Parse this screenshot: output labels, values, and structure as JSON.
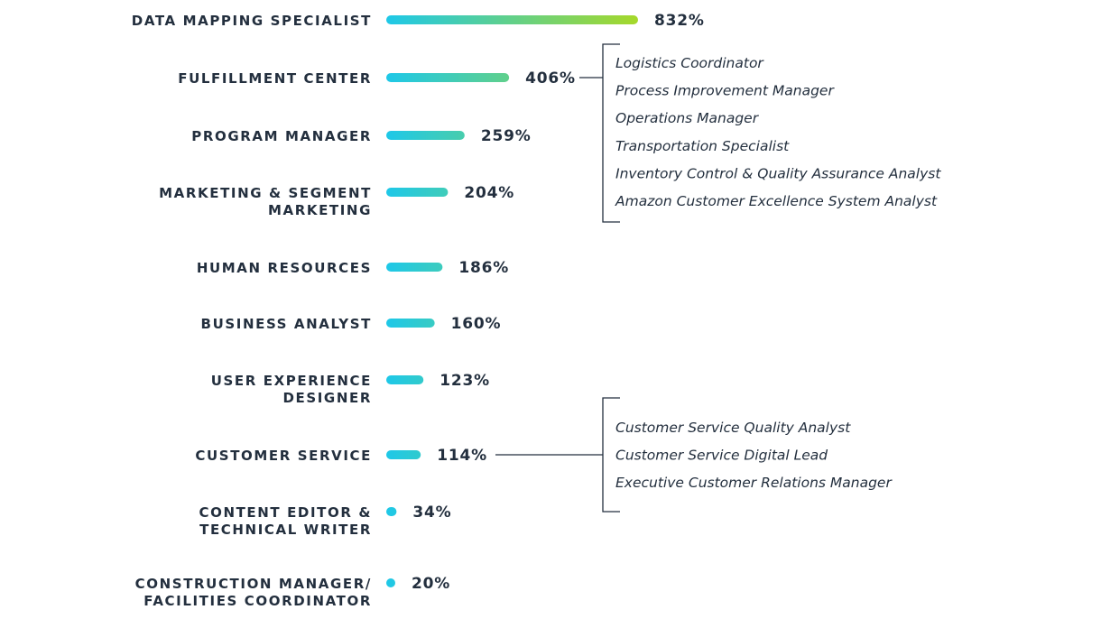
{
  "chart_data": {
    "type": "bar",
    "orientation": "horizontal",
    "unit": "%",
    "categories": [
      [
        "DATA MAPPING SPECIALIST"
      ],
      [
        "FULFILLMENT CENTER"
      ],
      [
        "PROGRAM MANAGER"
      ],
      [
        "MARKETING & SEGMENT",
        "MARKETING"
      ],
      [
        "HUMAN RESOURCES"
      ],
      [
        "BUSINESS ANALYST"
      ],
      [
        "USER EXPERIENCE",
        "DESIGNER"
      ],
      [
        "CUSTOMER SERVICE"
      ],
      [
        "CONTENT EDITOR &",
        "TECHNICAL WRITER"
      ],
      [
        "CONSTRUCTION MANAGER/",
        "FACILITIES COORDINATOR"
      ]
    ],
    "values": [
      832,
      406,
      259,
      204,
      186,
      160,
      123,
      114,
      34,
      20
    ],
    "value_labels": [
      "832%",
      "406%",
      "259%",
      "204%",
      "186%",
      "160%",
      "123%",
      "114%",
      "34%",
      "20%"
    ],
    "colors": {
      "start": "#1ec8e8",
      "end": "#a6d82a",
      "text": "#232f3e",
      "line": "#232f3e"
    },
    "annotations": [
      {
        "target_index": 1,
        "items": [
          "Logistics Coordinator",
          "Process Improvement Manager",
          "Operations Manager",
          "Transportation Specialist",
          "Inventory Control & Quality Assurance Analyst",
          "Amazon Customer Excellence System Analyst"
        ]
      },
      {
        "target_index": 7,
        "items": [
          "Customer Service Quality Analyst",
          "Customer Service Digital Lead",
          "Executive Customer Relations Manager"
        ]
      }
    ],
    "title": "",
    "xlabel": "",
    "ylabel": ""
  }
}
